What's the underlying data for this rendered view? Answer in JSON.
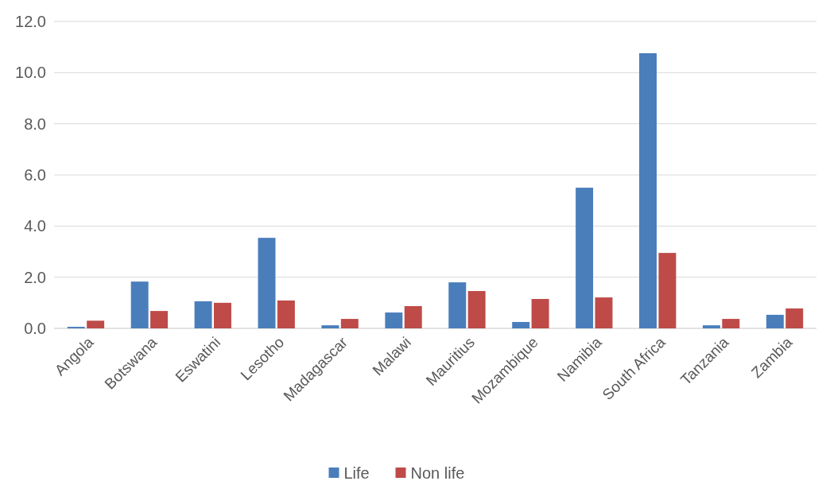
{
  "chart_data": {
    "type": "bar",
    "categories": [
      "Angola",
      "Botswana",
      "Eswatini",
      "Lesotho",
      "Madagascar",
      "Malawi",
      "Mauritius",
      "Mozambique",
      "Namibia",
      "South Africa",
      "Tanzania",
      "Zambia"
    ],
    "series": [
      {
        "name": "Life",
        "color": "#4a7ebb",
        "values": [
          0.06,
          1.83,
          1.06,
          3.54,
          0.12,
          0.62,
          1.8,
          0.25,
          5.5,
          10.76,
          0.12,
          0.53
        ]
      },
      {
        "name": "Non life",
        "color": "#be4b48",
        "values": [
          0.3,
          0.68,
          1.0,
          1.09,
          0.37,
          0.87,
          1.46,
          1.15,
          1.21,
          2.95,
          0.37,
          0.78
        ]
      }
    ],
    "ylim": [
      0,
      12
    ],
    "yticks": [
      {
        "value": 0,
        "label": "0.0"
      },
      {
        "value": 2,
        "label": "2.0"
      },
      {
        "value": 4,
        "label": "4.0"
      },
      {
        "value": 6,
        "label": "6.0"
      },
      {
        "value": 8,
        "label": "8.0"
      },
      {
        "value": 10,
        "label": "10.0"
      },
      {
        "value": 12,
        "label": "12.0"
      }
    ],
    "grid": "y",
    "legend": "bottom"
  }
}
